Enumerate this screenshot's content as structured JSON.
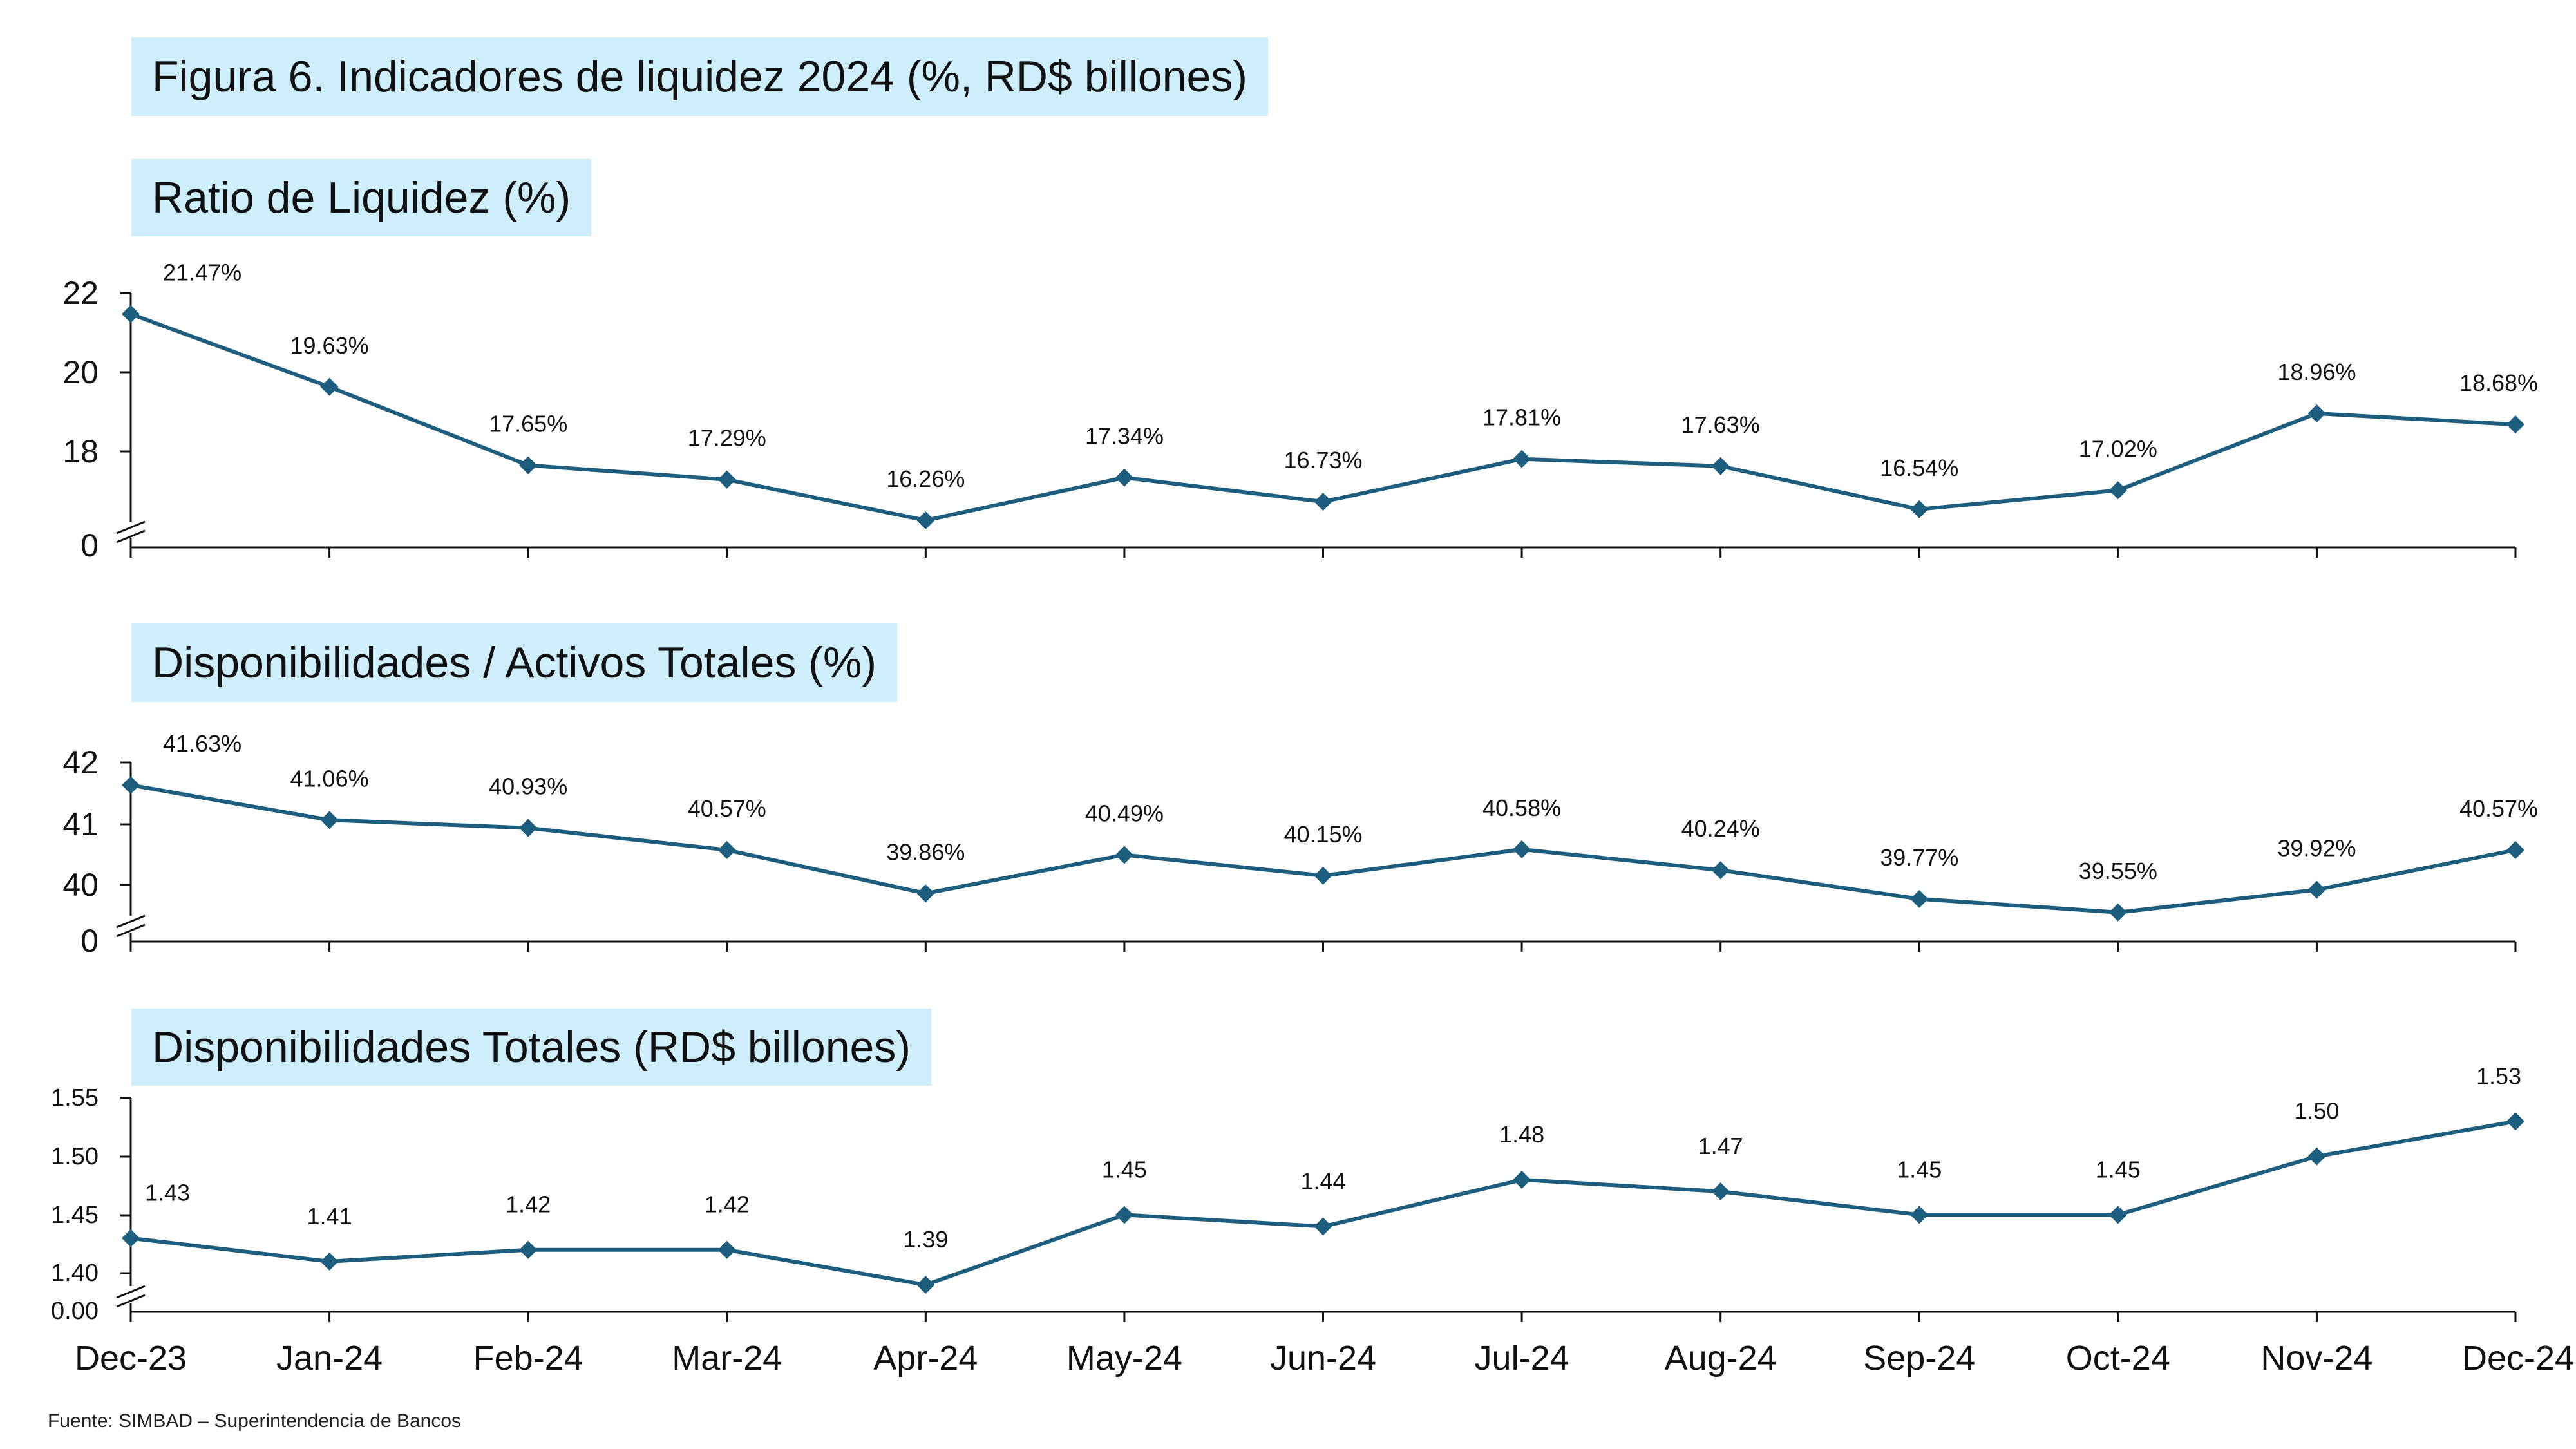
{
  "main_title": "Figura 6. Indicadores de liquidez 2024 (%, RD$ billones)",
  "source": "Fuente: SIMBAD – Superintendencia de Bancos",
  "colors": {
    "line": "#1d5e7f",
    "title_background": "#cdeefa",
    "axis": "#111111"
  },
  "chart_data": [
    {
      "type": "line",
      "title": "Ratio de Liquidez (%)",
      "categories": [
        "Dec-23",
        "Jan-24",
        "Feb-24",
        "Mar-24",
        "Apr-24",
        "May-24",
        "Jun-24",
        "Jul-24",
        "Aug-24",
        "Sep-24",
        "Oct-24",
        "Nov-24",
        "Dec-24"
      ],
      "values": [
        21.47,
        19.63,
        17.65,
        17.29,
        16.26,
        17.34,
        16.73,
        17.81,
        17.63,
        16.54,
        17.02,
        18.96,
        18.68
      ],
      "data_labels": [
        "21.47%",
        "19.63%",
        "17.65%",
        "17.29%",
        "16.26%",
        "17.34%",
        "16.73%",
        "17.81%",
        "17.63%",
        "16.54%",
        "17.02%",
        "18.96%",
        "18.68%"
      ],
      "yticks": [
        "0",
        "18",
        "20",
        "22"
      ],
      "ylim": [
        16,
        22
      ],
      "axis_break": true,
      "show_xtick_labels": false,
      "grid": false,
      "marker": "diamond"
    },
    {
      "type": "line",
      "title": "Disponibilidades / Activos Totales (%)",
      "categories": [
        "Dec-23",
        "Jan-24",
        "Feb-24",
        "Mar-24",
        "Apr-24",
        "May-24",
        "Jun-24",
        "Jul-24",
        "Aug-24",
        "Sep-24",
        "Oct-24",
        "Nov-24",
        "Dec-24"
      ],
      "values": [
        41.63,
        41.06,
        40.93,
        40.57,
        39.86,
        40.49,
        40.15,
        40.58,
        40.24,
        39.77,
        39.55,
        39.92,
        40.57
      ],
      "data_labels": [
        "41.63%",
        "41.06%",
        "40.93%",
        "40.57%",
        "39.86%",
        "40.49%",
        "40.15%",
        "40.58%",
        "40.24%",
        "39.77%",
        "39.55%",
        "39.92%",
        "40.57%"
      ],
      "yticks": [
        "0",
        "40",
        "41",
        "42"
      ],
      "ylim": [
        39.5,
        42
      ],
      "axis_break": true,
      "show_xtick_labels": false,
      "grid": false,
      "marker": "diamond"
    },
    {
      "type": "line",
      "title": "Disponibilidades Totales (RD$ billones)",
      "categories": [
        "Dec-23",
        "Jan-24",
        "Feb-24",
        "Mar-24",
        "Apr-24",
        "May-24",
        "Jun-24",
        "Jul-24",
        "Aug-24",
        "Sep-24",
        "Oct-24",
        "Nov-24",
        "Dec-24"
      ],
      "values": [
        1.43,
        1.41,
        1.42,
        1.42,
        1.39,
        1.45,
        1.44,
        1.48,
        1.47,
        1.45,
        1.45,
        1.5,
        1.53
      ],
      "data_labels": [
        "1.43",
        "1.41",
        "1.42",
        "1.42",
        "1.39",
        "1.45",
        "1.44",
        "1.48",
        "1.47",
        "1.45",
        "1.45",
        "1.50",
        "1.53"
      ],
      "yticks": [
        "0.00",
        "1.40",
        "1.45",
        "1.50",
        "1.55"
      ],
      "ylim": [
        1.38,
        1.55
      ],
      "axis_break": true,
      "show_xtick_labels": true,
      "grid": false,
      "marker": "diamond"
    }
  ]
}
